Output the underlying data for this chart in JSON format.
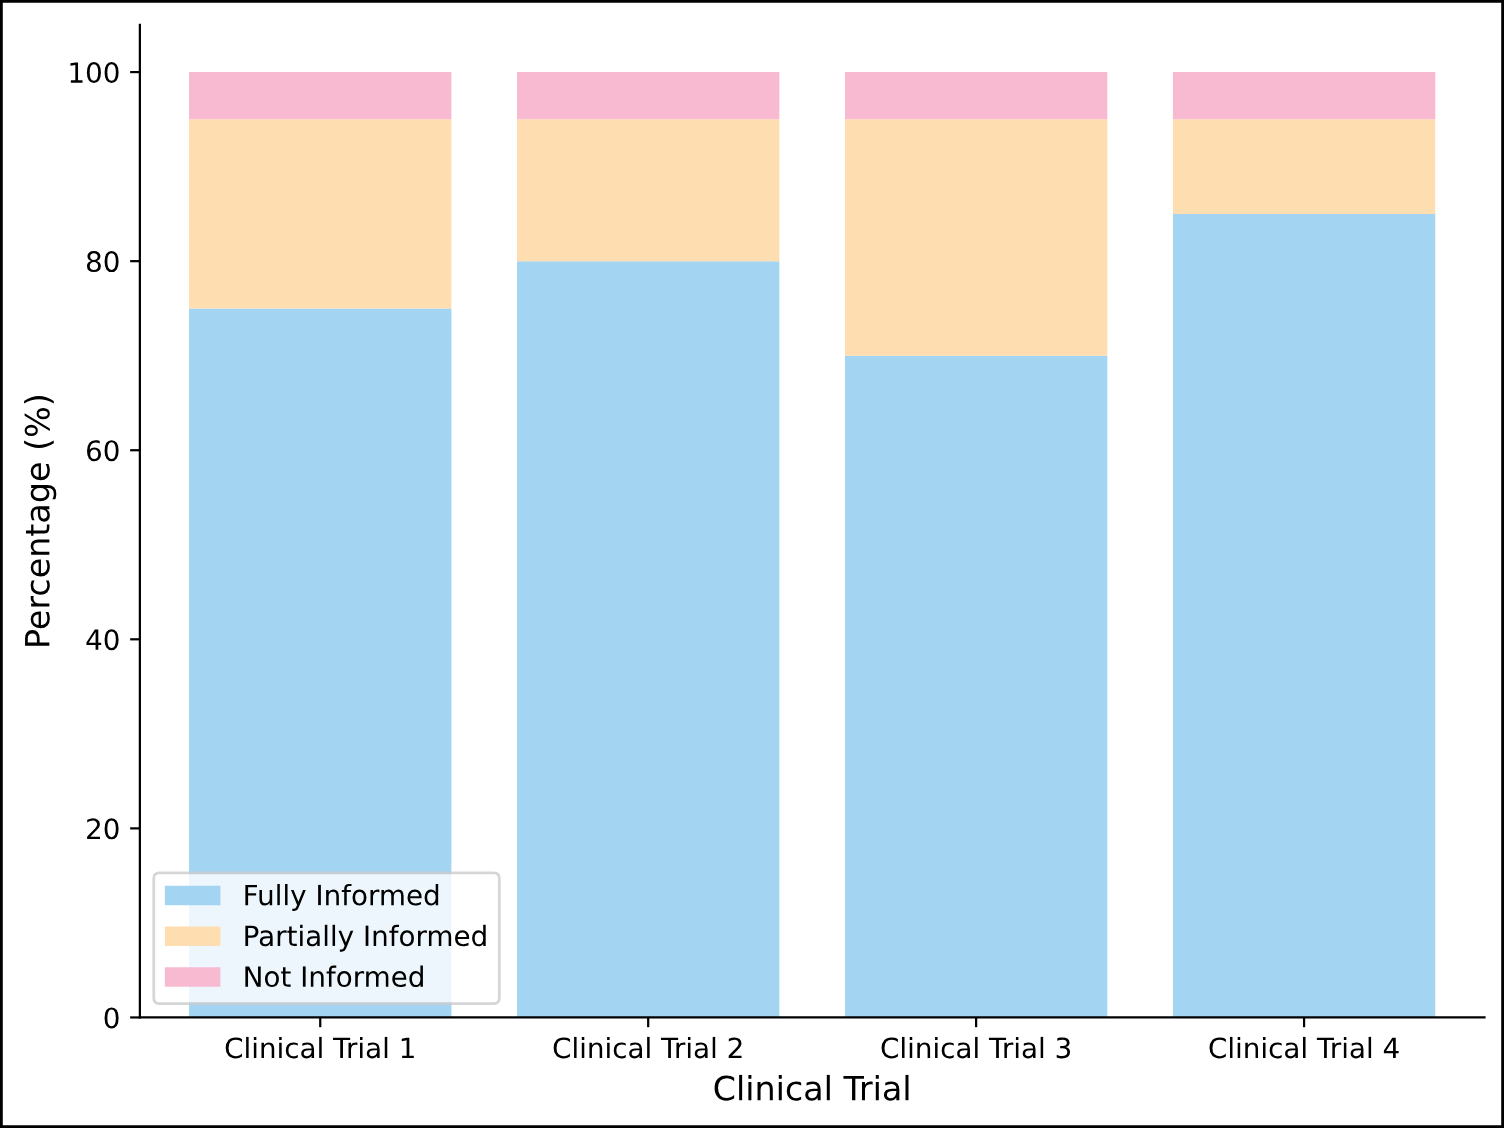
{
  "chart_data": {
    "type": "bar",
    "stacked": true,
    "xlabel": "Clinical Trial",
    "ylabel": "Percentage (%)",
    "categories": [
      "Clinical Trial 1",
      "Clinical Trial 2",
      "Clinical Trial 3",
      "Clinical Trial 4"
    ],
    "series": [
      {
        "name": "Fully Informed",
        "color": "#a3d5f2",
        "values": [
          75,
          80,
          70,
          85
        ]
      },
      {
        "name": "Partially Informed",
        "color": "#fedeb1",
        "values": [
          20,
          15,
          25,
          10
        ]
      },
      {
        "name": "Not Informed",
        "color": "#f8bad0",
        "values": [
          5,
          5,
          5,
          5
        ]
      }
    ],
    "ylim": [
      0,
      105
    ],
    "yticks": [
      0,
      20,
      40,
      60,
      80,
      100
    ],
    "grid": false,
    "legend": "bottom left"
  }
}
